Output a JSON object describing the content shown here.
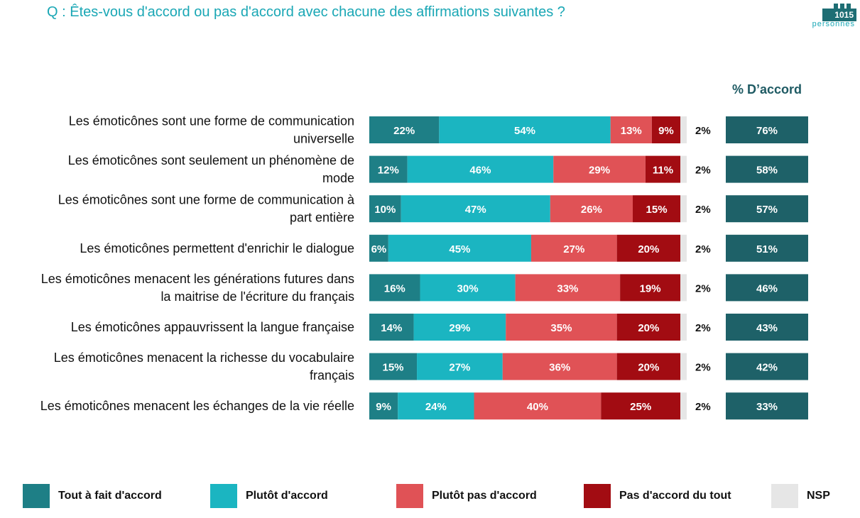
{
  "title": "Q : Êtes-vous d'accord ou pas d'accord avec chacune des affirmations suivantes ?",
  "badge": {
    "number": "1015",
    "text": "personnes"
  },
  "accord_header": "% D’accord",
  "colors": {
    "tout_a_fait": "#1e7f86",
    "plutot": "#1bb5c1",
    "plutot_pas": "#e05256",
    "pas_du_tout": "#a20c12",
    "nsp": "#e6e6e6",
    "accord_box": "#1e6168",
    "title": "#1aa7b5"
  },
  "chart_data": {
    "type": "bar",
    "orientation": "horizontal",
    "stacked": true,
    "categories": [
      [
        "Les émoticônes sont une forme de communication",
        "universelle"
      ],
      [
        "Les émoticônes sont seulement un phénomène de",
        "mode"
      ],
      [
        "Les émoticônes sont une forme de communication à",
        "part entière"
      ],
      [
        "Les émoticônes permettent d'enrichir le dialogue"
      ],
      [
        "Les émoticônes menacent les générations futures dans",
        "la maitrise de l'écriture du français"
      ],
      [
        "Les émoticônes appauvrissent la langue française"
      ],
      [
        "Les émoticônes menacent la richesse du vocabulaire",
        "français"
      ],
      [
        "Les émoticônes menacent les échanges de la vie réelle"
      ]
    ],
    "series": [
      {
        "name": "Tout à fait d'accord",
        "color": "#1e7f86",
        "values": [
          22,
          12,
          10,
          6,
          16,
          14,
          15,
          9
        ]
      },
      {
        "name": "Plutôt d'accord",
        "color": "#1bb5c1",
        "values": [
          54,
          46,
          47,
          45,
          30,
          29,
          27,
          24
        ]
      },
      {
        "name": "Plutôt pas d'accord",
        "color": "#e05256",
        "values": [
          13,
          29,
          26,
          27,
          33,
          35,
          36,
          40
        ]
      },
      {
        "name": "Pas d'accord du tout",
        "color": "#a20c12",
        "values": [
          9,
          11,
          15,
          20,
          19,
          20,
          20,
          25
        ]
      },
      {
        "name": "NSP",
        "color": "#e6e6e6",
        "values": [
          2,
          2,
          2,
          2,
          2,
          2,
          2,
          2
        ]
      }
    ],
    "accord_total": [
      76,
      58,
      57,
      51,
      46,
      43,
      42,
      33
    ],
    "unit": "%"
  },
  "legend": [
    {
      "label": "Tout à fait d'accord",
      "color": "#1e7f86"
    },
    {
      "label": "Plutôt d'accord",
      "color": "#1bb5c1"
    },
    {
      "label": "Plutôt pas d'accord",
      "color": "#e05256"
    },
    {
      "label": "Pas d'accord du tout",
      "color": "#a20c12"
    },
    {
      "label": "NSP",
      "color": "#e6e6e6"
    }
  ]
}
